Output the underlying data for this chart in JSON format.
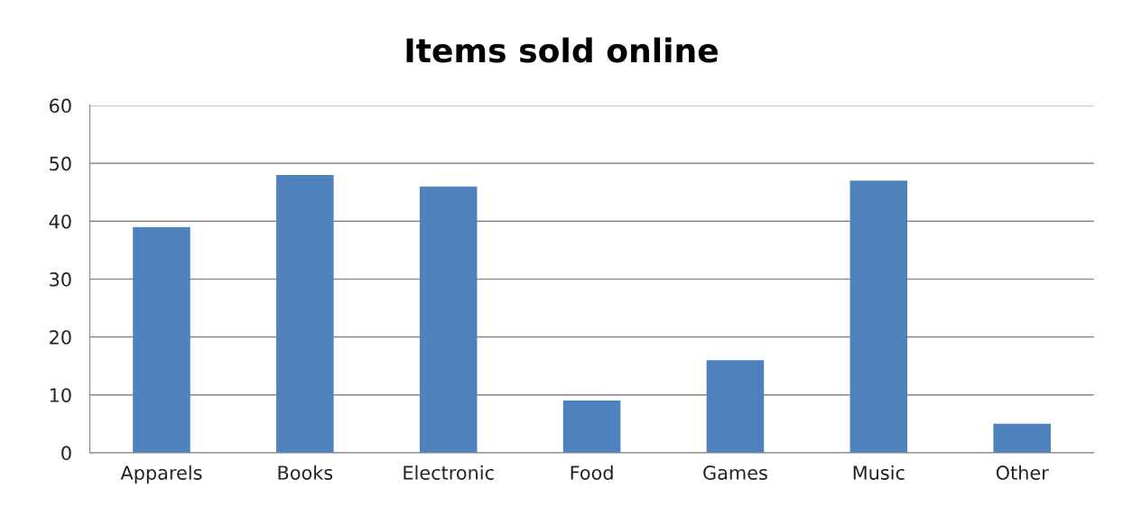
{
  "chart_data": {
    "type": "bar",
    "title": "Items sold online",
    "categories": [
      "Apparels",
      "Books",
      "Electronic",
      "Food",
      "Games",
      "Music",
      "Other"
    ],
    "values": [
      39,
      48,
      46,
      9,
      16,
      47,
      5
    ],
    "color": "#4f81bd",
    "ylim": [
      0,
      60
    ],
    "yticks": [
      0,
      10,
      20,
      30,
      40,
      50,
      60
    ],
    "grid": "y",
    "legend": false
  }
}
